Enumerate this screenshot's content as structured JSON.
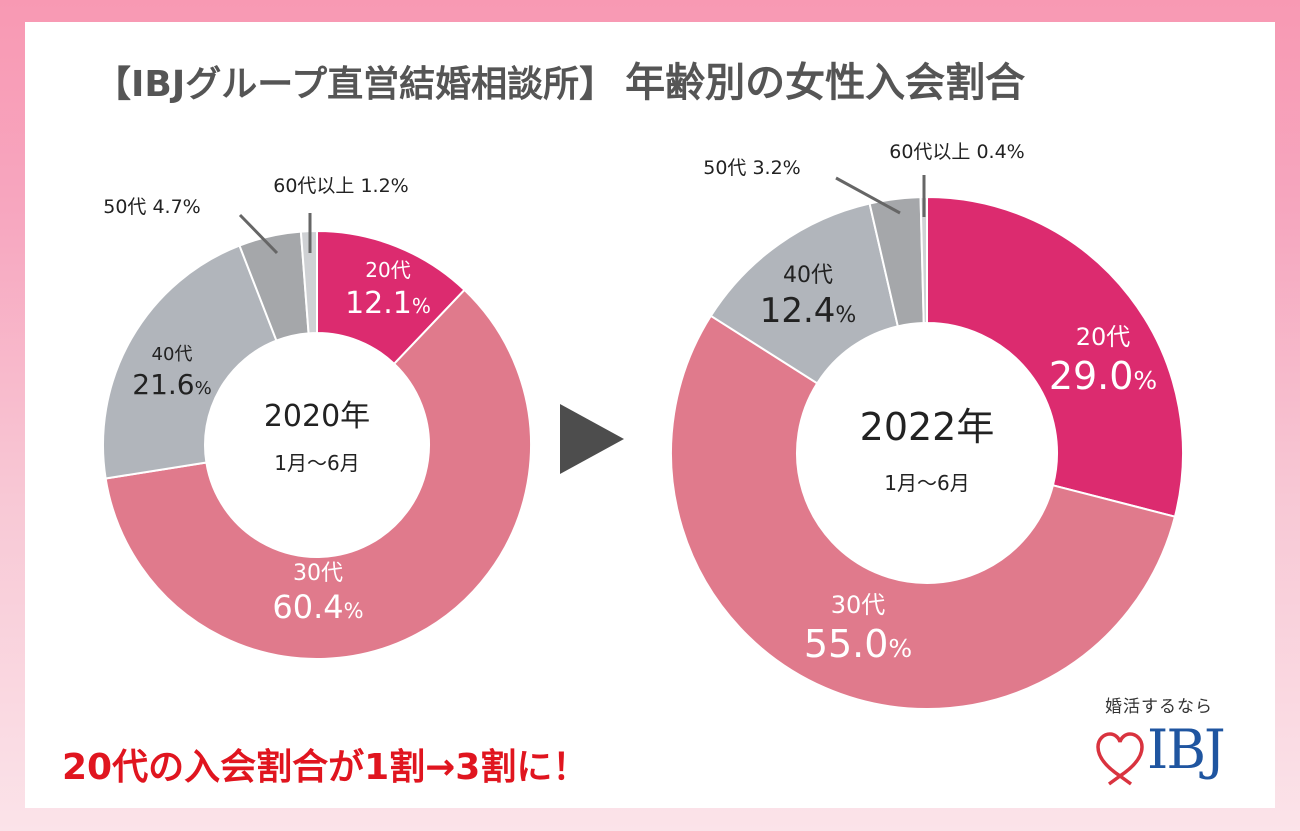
{
  "title": {
    "prefix": "【IBJグループ直営結婚相談所】",
    "main": "年齢別の女性入会割合"
  },
  "colors": {
    "age20": "#dc2b6f",
    "age30": "#e07a8c",
    "age40": "#b1b5bb",
    "age50": "#a5a7aa",
    "age60": "#cfd1d4",
    "leader": "#666666",
    "arrow": "#4d4d4d",
    "tagline": "#e0151f",
    "logo_text": "#1f55a0",
    "logo_heart": "#d9333f"
  },
  "chart_data": [
    {
      "type": "pie",
      "variant": "donut",
      "center_title": "2020年",
      "center_subtitle": "1月〜6月",
      "unit": "%",
      "slices": [
        {
          "key": "age20",
          "label": "20代",
          "value": 12.1,
          "value_text": "12.1"
        },
        {
          "key": "age30",
          "label": "30代",
          "value": 60.4,
          "value_text": "60.4"
        },
        {
          "key": "age40",
          "label": "40代",
          "value": 21.6,
          "value_text": "21.6"
        },
        {
          "key": "age50",
          "label": "50代",
          "value": 4.7,
          "value_text": "4.7"
        },
        {
          "key": "age60",
          "label": "60代以上",
          "value": 1.2,
          "value_text": "1.2"
        }
      ],
      "start": "12 o'clock",
      "direction": "clockwise"
    },
    {
      "type": "pie",
      "variant": "donut",
      "center_title": "2022年",
      "center_subtitle": "1月〜6月",
      "unit": "%",
      "slices": [
        {
          "key": "age20",
          "label": "20代",
          "value": 29.0,
          "value_text": "29.0"
        },
        {
          "key": "age30",
          "label": "30代",
          "value": 55.0,
          "value_text": "55.0"
        },
        {
          "key": "age40",
          "label": "40代",
          "value": 12.4,
          "value_text": "12.4"
        },
        {
          "key": "age50",
          "label": "50代",
          "value": 3.2,
          "value_text": "3.2"
        },
        {
          "key": "age60",
          "label": "60代以上",
          "value": 0.4,
          "value_text": "0.4"
        }
      ],
      "start": "12 o'clock",
      "direction": "clockwise"
    }
  ],
  "transition_icon": "play-arrow-right",
  "tagline": "20代の入会割合が1割→3割に！",
  "logo": {
    "catchphrase": "婚活するなら",
    "brand": "IBJ",
    "icon": "heart-ribbon"
  }
}
